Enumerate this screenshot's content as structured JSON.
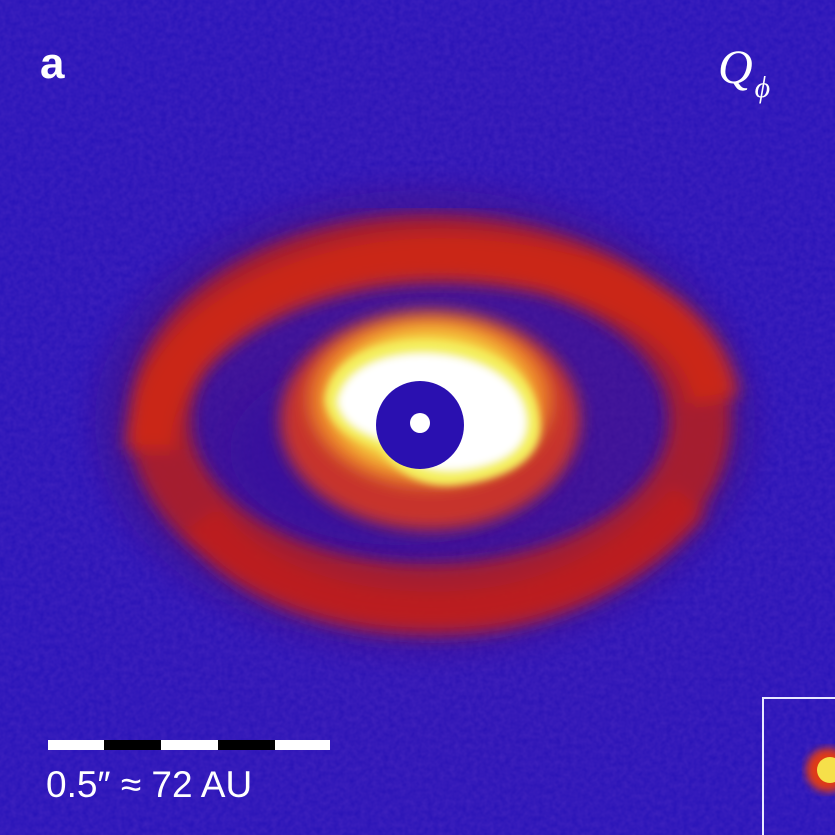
{
  "panel": {
    "label": "a"
  },
  "stokes": {
    "symbol": "Q",
    "subscript": "ϕ"
  },
  "scale_bar": {
    "text": "0.5″ ≈ 72 AU",
    "segments": 5
  },
  "colors": {
    "background": "#2812b4",
    "outer_ring": "#c8201a",
    "inner_ring": "#f08a2a",
    "core": "#ffffff",
    "core_edge": "#f4f060",
    "coronagraph": "#2a10b0",
    "star": "#ffffff"
  }
}
